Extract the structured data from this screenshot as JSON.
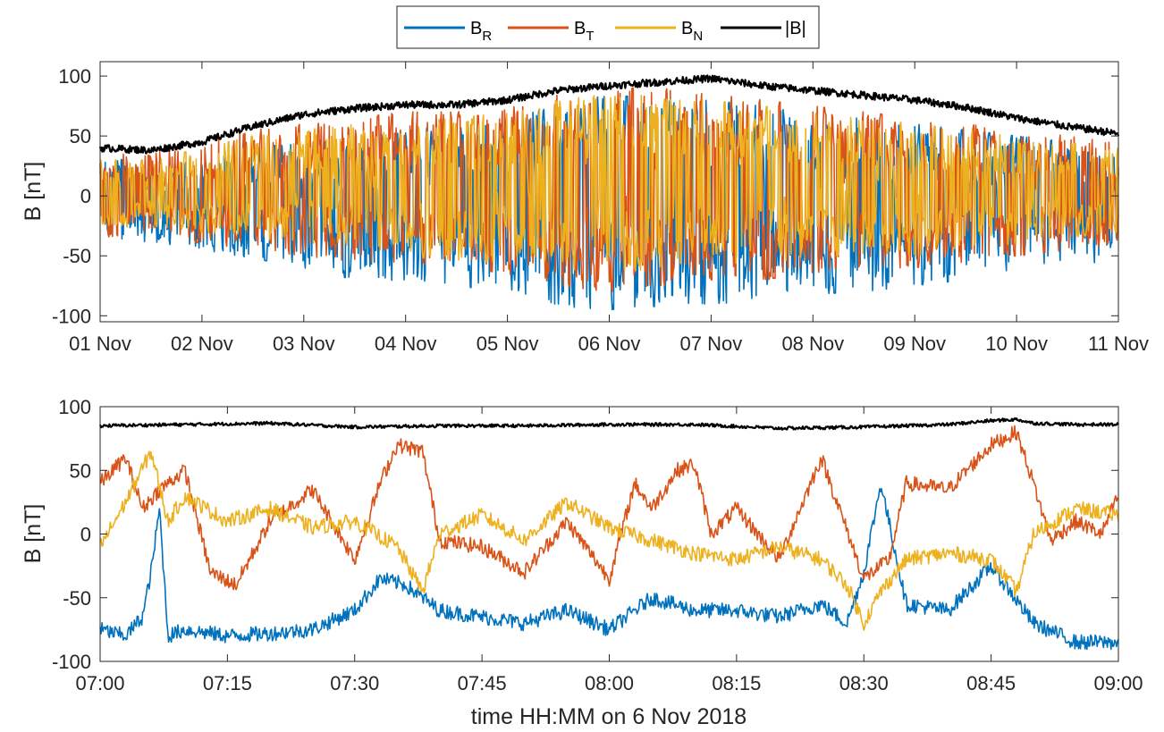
{
  "legend": {
    "entries": [
      {
        "base": "B",
        "sub": "R"
      },
      {
        "base": "B",
        "sub": "T"
      },
      {
        "base": "B",
        "sub": "N"
      },
      {
        "base": "|B|",
        "sub": ""
      }
    ],
    "placement": "top-center, outside"
  },
  "xlabel": "time HH:MM on 6 Nov 2018",
  "chart_data": [
    {
      "type": "line",
      "title": "",
      "ylabel": "B [nT]",
      "xlabel": "",
      "ylim": [
        -105,
        112
      ],
      "yticks": [
        "-100",
        "-50",
        "0",
        "50",
        "100"
      ],
      "ytick_values": [
        -100,
        -50,
        0,
        50,
        100
      ],
      "xticks": [
        "01 Nov",
        "02 Nov",
        "03 Nov",
        "04 Nov",
        "05 Nov",
        "06 Nov",
        "07 Nov",
        "08 Nov",
        "09 Nov",
        "10 Nov",
        "11 Nov"
      ],
      "x_unit": "days since 00:00 01 Nov 2018",
      "xlim": [
        0,
        10
      ],
      "grid": false,
      "series": [
        {
          "name": "B_R",
          "color": "#0072BD",
          "x": [
            0,
            0.5,
            1,
            1.5,
            2,
            2.5,
            3,
            3.5,
            4,
            4.5,
            5,
            5.5,
            6,
            6.5,
            7,
            7.5,
            8,
            8.5,
            9,
            9.5,
            10
          ],
          "low": [
            -40,
            -38,
            -45,
            -52,
            -60,
            -70,
            -72,
            -75,
            -80,
            -92,
            -95,
            -92,
            -90,
            -88,
            -82,
            -80,
            -75,
            -70,
            -65,
            -58,
            -55
          ],
          "high": [
            35,
            25,
            30,
            40,
            45,
            50,
            55,
            60,
            65,
            75,
            85,
            80,
            80,
            75,
            70,
            65,
            60,
            55,
            50,
            45,
            35
          ]
        },
        {
          "name": "B_T",
          "color": "#D95319",
          "x": [
            0,
            0.5,
            1,
            1.5,
            2,
            2.5,
            3,
            3.5,
            4,
            4.5,
            5,
            5.5,
            6,
            6.5,
            7,
            7.5,
            8,
            8.5,
            9,
            9.5,
            10
          ],
          "low": [
            -35,
            -30,
            -40,
            -45,
            -50,
            -55,
            -60,
            -60,
            -65,
            -75,
            -80,
            -75,
            -70,
            -70,
            -65,
            -60,
            -60,
            -55,
            -50,
            -45,
            -40
          ],
          "high": [
            35,
            35,
            45,
            55,
            60,
            65,
            70,
            70,
            75,
            85,
            90,
            90,
            85,
            80,
            75,
            70,
            65,
            60,
            55,
            50,
            45
          ]
        },
        {
          "name": "B_N",
          "color": "#EDB120",
          "x": [
            0,
            0.5,
            1,
            1.5,
            2,
            2.5,
            3,
            3.5,
            4,
            4.5,
            5,
            5.5,
            6,
            6.5,
            7,
            7.5,
            8,
            8.5,
            9,
            9.5,
            10
          ],
          "low": [
            -30,
            -25,
            -30,
            -35,
            -40,
            -45,
            -50,
            -55,
            -55,
            -60,
            -65,
            -60,
            -60,
            -55,
            -55,
            -50,
            -50,
            -45,
            -40,
            -35,
            -30
          ],
          "high": [
            30,
            30,
            40,
            50,
            55,
            60,
            65,
            65,
            70,
            80,
            85,
            85,
            80,
            75,
            70,
            65,
            60,
            55,
            50,
            45,
            40
          ]
        },
        {
          "name": "|B|",
          "color": "#000000",
          "x": [
            0,
            0.5,
            1,
            1.5,
            2,
            2.5,
            3,
            3.5,
            4,
            4.5,
            5,
            5.5,
            6,
            6.5,
            7,
            7.5,
            8,
            8.5,
            9,
            9.5,
            10
          ],
          "y": [
            40,
            38,
            45,
            58,
            68,
            73,
            76,
            76,
            80,
            88,
            92,
            95,
            98,
            92,
            88,
            84,
            80,
            74,
            65,
            58,
            52
          ]
        }
      ]
    },
    {
      "type": "line",
      "title": "",
      "ylabel": "B [nT]",
      "xlabel": "time HH:MM on 6 Nov 2018",
      "ylim": [
        -100,
        100
      ],
      "yticks": [
        "-100",
        "-50",
        "0",
        "50",
        "100"
      ],
      "ytick_values": [
        -100,
        -50,
        0,
        50,
        100
      ],
      "xticks": [
        "07:00",
        "07:15",
        "07:30",
        "07:45",
        "08:00",
        "08:15",
        "08:30",
        "08:45",
        "09:00"
      ],
      "x_unit": "minutes after 07:00",
      "xlim": [
        0,
        120
      ],
      "grid": false,
      "series": [
        {
          "name": "B_R",
          "color": "#0072BD",
          "x": [
            0,
            3,
            5,
            6,
            7,
            8,
            10,
            15,
            20,
            25,
            30,
            33,
            36,
            40,
            45,
            50,
            55,
            60,
            65,
            70,
            75,
            80,
            85,
            88,
            90,
            92,
            95,
            100,
            105,
            110,
            115,
            120
          ],
          "y": [
            -75,
            -80,
            -65,
            -30,
            20,
            -80,
            -75,
            -80,
            -78,
            -75,
            -60,
            -35,
            -40,
            -60,
            -65,
            -70,
            -60,
            -75,
            -50,
            -60,
            -60,
            -65,
            -55,
            -70,
            -30,
            40,
            -55,
            -60,
            -25,
            -70,
            -85,
            -85
          ]
        },
        {
          "name": "B_T",
          "color": "#D95319",
          "x": [
            0,
            3,
            5,
            7,
            10,
            13,
            16,
            20,
            25,
            30,
            33,
            35,
            38,
            40,
            45,
            50,
            55,
            60,
            63,
            65,
            68,
            70,
            72,
            75,
            80,
            85,
            90,
            93,
            95,
            100,
            105,
            108,
            110,
            112,
            115,
            118,
            120
          ],
          "y": [
            40,
            60,
            20,
            35,
            50,
            -30,
            -40,
            10,
            35,
            -20,
            40,
            70,
            65,
            -5,
            -10,
            -30,
            10,
            -35,
            40,
            20,
            50,
            55,
            0,
            20,
            -20,
            60,
            -35,
            -20,
            40,
            35,
            70,
            80,
            40,
            -5,
            10,
            0,
            30
          ]
        },
        {
          "name": "B_N",
          "color": "#EDB120",
          "x": [
            0,
            3,
            6,
            8,
            10,
            15,
            20,
            25,
            30,
            35,
            38,
            40,
            45,
            50,
            55,
            60,
            65,
            70,
            75,
            80,
            85,
            88,
            90,
            92,
            95,
            100,
            105,
            108,
            110,
            115,
            120
          ],
          "y": [
            -10,
            25,
            65,
            10,
            30,
            10,
            20,
            5,
            10,
            -10,
            -45,
            0,
            15,
            -5,
            25,
            5,
            -5,
            -15,
            -20,
            -10,
            -20,
            -40,
            -70,
            -45,
            -20,
            -15,
            -20,
            -45,
            0,
            20,
            15
          ]
        },
        {
          "name": "|B|",
          "color": "#000000",
          "x": [
            0,
            10,
            20,
            30,
            40,
            50,
            60,
            70,
            80,
            90,
            100,
            105,
            108,
            110,
            115,
            120
          ],
          "y": [
            85,
            86,
            87,
            84,
            85,
            85,
            86,
            86,
            83,
            84,
            86,
            89,
            90,
            87,
            86,
            86
          ]
        }
      ]
    }
  ]
}
